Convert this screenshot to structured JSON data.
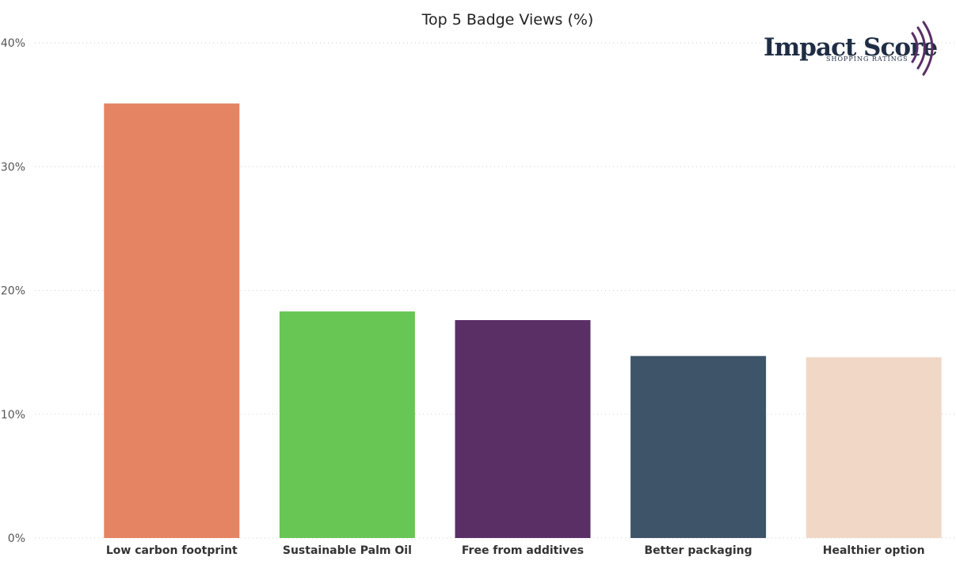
{
  "chart_data": {
    "type": "bar",
    "title": "Top 5 Badge Views (%)",
    "categories": [
      "Low carbon footprint",
      "Sustainable Palm Oil",
      "Free from additives",
      "Better packaging",
      "Healthier option"
    ],
    "values": [
      35.1,
      18.3,
      17.6,
      14.7,
      14.6
    ],
    "colors": [
      "#e48462",
      "#68c655",
      "#5a2f66",
      "#3e5468",
      "#f1d8c6"
    ],
    "ylim": [
      0,
      40
    ],
    "yticks": [
      0,
      10,
      20,
      30,
      40
    ],
    "ytick_labels": [
      "0%",
      "10%",
      "20%",
      "30%",
      "40%"
    ],
    "grid": true,
    "legend": "none"
  },
  "logo": {
    "name": "Impact Score",
    "tagline": "SHOPPING RATINGS",
    "color": "#1f2d44",
    "accent_color": "#5a2f66"
  }
}
